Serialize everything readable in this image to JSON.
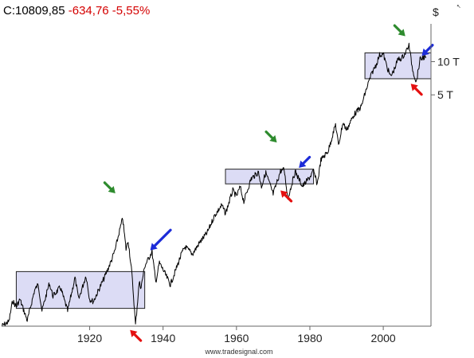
{
  "header": {
    "symbol_value": "C:10809,85",
    "change": "-634,76",
    "change_pct": "-5,55%"
  },
  "footer": {
    "source": "www.tradesignal.com"
  },
  "colors": {
    "price_line": "#000000",
    "range_box_fill": "#dcdcf5",
    "range_box_stroke": "#222222",
    "peak_arrow": "#2e8b2e",
    "breakout_arrow": "#1c2bd8",
    "low_arrow": "#e41010",
    "negative_text": "#d40000"
  },
  "chart_data": {
    "type": "line",
    "title": "",
    "xlabel": "",
    "ylabel": "$",
    "y_scale": "log",
    "xlim": [
      1896,
      2013
    ],
    "ylim": [
      40,
      22000
    ],
    "x_ticks": [
      1920,
      1940,
      1960,
      1980,
      2000
    ],
    "y_ticks": [
      {
        "value": 10000,
        "label": "10 T"
      },
      {
        "value": 5000,
        "label": "5 T"
      }
    ],
    "grid": false,
    "legend": "none",
    "series": [
      {
        "points": [
          [
            1896,
            40
          ],
          [
            1898,
            44
          ],
          [
            1899,
            68
          ],
          [
            1900,
            60
          ],
          [
            1901,
            70
          ],
          [
            1903,
            45
          ],
          [
            1905,
            85
          ],
          [
            1906,
            96
          ],
          [
            1907,
            55
          ],
          [
            1909,
            98
          ],
          [
            1910,
            75
          ],
          [
            1912,
            90
          ],
          [
            1914,
            55
          ],
          [
            1916,
            110
          ],
          [
            1917,
            70
          ],
          [
            1919,
            115
          ],
          [
            1920,
            70
          ],
          [
            1921,
            67
          ],
          [
            1924,
            110
          ],
          [
            1926,
            160
          ],
          [
            1927,
            200
          ],
          [
            1928,
            280
          ],
          [
            1929,
            381
          ],
          [
            1929.9,
            200
          ],
          [
            1930.5,
            240
          ],
          [
            1931.5,
            120
          ],
          [
            1932.5,
            41
          ],
          [
            1933.5,
            100
          ],
          [
            1934,
            90
          ],
          [
            1935,
            140
          ],
          [
            1937,
            190
          ],
          [
            1938,
            100
          ],
          [
            1939,
            150
          ],
          [
            1940,
            130
          ],
          [
            1942,
            95
          ],
          [
            1945,
            180
          ],
          [
            1946,
            210
          ],
          [
            1948,
            180
          ],
          [
            1950,
            230
          ],
          [
            1952,
            280
          ],
          [
            1954,
            400
          ],
          [
            1956,
            500
          ],
          [
            1957,
            420
          ],
          [
            1959,
            680
          ],
          [
            1960,
            600
          ],
          [
            1961,
            730
          ],
          [
            1962,
            540
          ],
          [
            1964,
            870
          ],
          [
            1966,
            995
          ],
          [
            1966.8,
            740
          ],
          [
            1968,
            985
          ],
          [
            1970,
            630
          ],
          [
            1972,
            1020
          ],
          [
            1973,
            1050
          ],
          [
            1974,
            577
          ],
          [
            1976,
            1010
          ],
          [
            1978,
            740
          ],
          [
            1980,
            900
          ],
          [
            1981,
            1020
          ],
          [
            1982,
            776
          ],
          [
            1983,
            1280
          ],
          [
            1985,
            1550
          ],
          [
            1987,
            2700
          ],
          [
            1987.8,
            1740
          ],
          [
            1989,
            2800
          ],
          [
            1990,
            2400
          ],
          [
            1992,
            3300
          ],
          [
            1994,
            3900
          ],
          [
            1995,
            5100
          ],
          [
            1996,
            6500
          ],
          [
            1997,
            8000
          ],
          [
            1998,
            9300
          ],
          [
            1999,
            11500
          ],
          [
            2000,
            11700
          ],
          [
            2001,
            9000
          ],
          [
            2002,
            7300
          ],
          [
            2003,
            8500
          ],
          [
            2004,
            10500
          ],
          [
            2005,
            10700
          ],
          [
            2006,
            12000
          ],
          [
            2007,
            14100
          ],
          [
            2008,
            8500
          ],
          [
            2009,
            6500
          ],
          [
            2010,
            10400
          ],
          [
            2011,
            11000
          ],
          [
            2011.6,
            10810
          ]
        ]
      }
    ],
    "range_boxes": [
      {
        "x0": 1900,
        "x1": 1935,
        "y0": 58,
        "y1": 125
      },
      {
        "x0": 1957,
        "x1": 1981,
        "y0": 780,
        "y1": 1060
      },
      {
        "x0": 1995,
        "x1": 2013,
        "y0": 7000,
        "y1": 12000
      }
    ],
    "arrows": [
      {
        "kind": "peak",
        "x": 1927,
        "y": 640,
        "dir": "down-right"
      },
      {
        "kind": "peak",
        "x": 1971,
        "y": 1850,
        "dir": "down-right"
      },
      {
        "kind": "peak",
        "x": 2006,
        "y": 17000,
        "dir": "down-right"
      },
      {
        "kind": "breakout",
        "x": 1936.5,
        "y": 195,
        "dir": "down-left",
        "long": true
      },
      {
        "kind": "breakout",
        "x": 1977,
        "y": 1090,
        "dir": "down-left"
      },
      {
        "kind": "breakout",
        "x": 2010.5,
        "y": 11300,
        "dir": "down-left"
      },
      {
        "kind": "low",
        "x": 1931,
        "y": 37,
        "dir": "up-left"
      },
      {
        "kind": "low",
        "x": 1972,
        "y": 680,
        "dir": "up-left"
      },
      {
        "kind": "low",
        "x": 2007.5,
        "y": 6300,
        "dir": "up-left"
      }
    ]
  }
}
